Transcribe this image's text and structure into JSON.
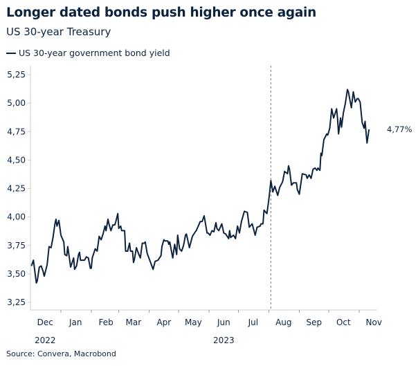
{
  "chart_data": {
    "type": "line",
    "title": "Longer dated bonds push higher once again",
    "subtitle": "US 30-year Treasury",
    "source": "Source: Convera, Macrobond",
    "ylim": [
      3.2,
      5.35
    ],
    "yticks": [
      "5,25",
      "5,00",
      "4,75",
      "4,50",
      "4,25",
      "4,00",
      "3,75",
      "3,50",
      "3,25"
    ],
    "ytick_values": [
      5.25,
      5.0,
      4.75,
      4.5,
      4.25,
      4.0,
      3.75,
      3.5,
      3.25
    ],
    "xlim": [
      "2022-12-01",
      "2023-11-20"
    ],
    "xticks": [
      {
        "label": "Dec",
        "month": "2022-12"
      },
      {
        "label": "Jan",
        "month": "2023-01"
      },
      {
        "label": "Feb",
        "month": "2023-02"
      },
      {
        "label": "Mar",
        "month": "2023-03"
      },
      {
        "label": "Apr",
        "month": "2023-04"
      },
      {
        "label": "May",
        "month": "2023-05"
      },
      {
        "label": "Jun",
        "month": "2023-06"
      },
      {
        "label": "Jul",
        "month": "2023-07"
      },
      {
        "label": "Aug",
        "month": "2023-08"
      },
      {
        "label": "Sep",
        "month": "2023-09"
      },
      {
        "label": "Oct",
        "month": "2023-10"
      },
      {
        "label": "Nov",
        "month": "2023-11"
      }
    ],
    "year_labels": [
      {
        "label": "2022",
        "date": "2022-12-16"
      },
      {
        "label": "2023",
        "date": "2023-06-16"
      }
    ],
    "grid": false,
    "legend_placement": "top-left",
    "vertical_marker": "2023-08-03",
    "end_label": "4,77%",
    "line_color": "#0c2340",
    "series": [
      {
        "name": "US 30-year government bond yield",
        "points": [
          [
            "2022-12-02",
            3.57
          ],
          [
            "2022-12-04",
            3.62
          ],
          [
            "2022-12-07",
            3.42
          ],
          [
            "2022-12-08",
            3.44
          ],
          [
            "2022-12-10",
            3.56
          ],
          [
            "2022-12-12",
            3.57
          ],
          [
            "2022-12-14",
            3.52
          ],
          [
            "2022-12-15",
            3.48
          ],
          [
            "2022-12-18",
            3.58
          ],
          [
            "2022-12-20",
            3.74
          ],
          [
            "2022-12-22",
            3.73
          ],
          [
            "2022-12-24",
            3.82
          ],
          [
            "2022-12-26",
            3.94
          ],
          [
            "2022-12-27",
            3.98
          ],
          [
            "2022-12-28",
            3.92
          ],
          [
            "2022-12-30",
            3.97
          ],
          [
            "2023-01-01",
            3.84
          ],
          [
            "2023-01-04",
            3.78
          ],
          [
            "2023-01-05",
            3.67
          ],
          [
            "2023-01-07",
            3.66
          ],
          [
            "2023-01-08",
            3.74
          ],
          [
            "2023-01-11",
            3.56
          ],
          [
            "2023-01-14",
            3.64
          ],
          [
            "2023-01-15",
            3.54
          ],
          [
            "2023-01-17",
            3.57
          ],
          [
            "2023-01-19",
            3.67
          ],
          [
            "2023-01-20",
            3.69
          ],
          [
            "2023-01-21",
            3.62
          ],
          [
            "2023-01-25",
            3.62
          ],
          [
            "2023-01-27",
            3.65
          ],
          [
            "2023-01-29",
            3.64
          ],
          [
            "2023-01-31",
            3.55
          ],
          [
            "2023-02-01",
            3.55
          ],
          [
            "2023-02-02",
            3.64
          ],
          [
            "2023-02-05",
            3.72
          ],
          [
            "2023-02-07",
            3.7
          ],
          [
            "2023-02-09",
            3.83
          ],
          [
            "2023-02-11",
            3.8
          ],
          [
            "2023-02-13",
            3.85
          ],
          [
            "2023-02-15",
            3.92
          ],
          [
            "2023-02-16",
            3.88
          ],
          [
            "2023-02-18",
            3.98
          ],
          [
            "2023-02-19",
            3.94
          ],
          [
            "2023-02-21",
            3.88
          ],
          [
            "2023-02-23",
            3.93
          ],
          [
            "2023-02-25",
            3.93
          ],
          [
            "2023-02-26",
            3.96
          ],
          [
            "2023-02-28",
            4.03
          ],
          [
            "2023-03-01",
            3.9
          ],
          [
            "2023-03-03",
            3.92
          ],
          [
            "2023-03-04",
            3.88
          ],
          [
            "2023-03-07",
            3.88
          ],
          [
            "2023-03-08",
            3.7
          ],
          [
            "2023-03-10",
            3.7
          ],
          [
            "2023-03-12",
            3.77
          ],
          [
            "2023-03-13",
            3.7
          ],
          [
            "2023-03-15",
            3.7
          ],
          [
            "2023-03-16",
            3.6
          ],
          [
            "2023-03-17",
            3.63
          ],
          [
            "2023-03-19",
            3.73
          ],
          [
            "2023-03-21",
            3.68
          ],
          [
            "2023-03-23",
            3.64
          ],
          [
            "2023-03-25",
            3.77
          ],
          [
            "2023-03-27",
            3.77
          ],
          [
            "2023-03-28",
            3.78
          ],
          [
            "2023-03-30",
            3.68
          ],
          [
            "2023-04-02",
            3.61
          ],
          [
            "2023-04-05",
            3.54
          ],
          [
            "2023-04-07",
            3.61
          ],
          [
            "2023-04-10",
            3.62
          ],
          [
            "2023-04-13",
            3.66
          ],
          [
            "2023-04-14",
            3.74
          ],
          [
            "2023-04-16",
            3.8
          ],
          [
            "2023-04-17",
            3.79
          ],
          [
            "2023-04-20",
            3.79
          ],
          [
            "2023-04-21",
            3.76
          ],
          [
            "2023-04-22",
            3.78
          ],
          [
            "2023-04-25",
            3.64
          ],
          [
            "2023-04-26",
            3.7
          ],
          [
            "2023-04-27",
            3.76
          ],
          [
            "2023-04-29",
            3.67
          ],
          [
            "2023-04-30",
            3.84
          ],
          [
            "2023-05-02",
            3.72
          ],
          [
            "2023-05-04",
            3.7
          ],
          [
            "2023-05-06",
            3.75
          ],
          [
            "2023-05-08",
            3.84
          ],
          [
            "2023-05-09",
            3.85
          ],
          [
            "2023-05-12",
            3.73
          ],
          [
            "2023-05-15",
            3.83
          ],
          [
            "2023-05-18",
            3.87
          ],
          [
            "2023-05-19",
            3.88
          ],
          [
            "2023-05-21",
            3.92
          ],
          [
            "2023-05-23",
            3.96
          ],
          [
            "2023-05-25",
            3.96
          ],
          [
            "2023-05-27",
            4.01
          ],
          [
            "2023-05-30",
            3.86
          ],
          [
            "2023-05-31",
            3.86
          ],
          [
            "2023-06-02",
            3.84
          ],
          [
            "2023-06-04",
            3.88
          ],
          [
            "2023-06-06",
            3.87
          ],
          [
            "2023-06-08",
            3.95
          ],
          [
            "2023-06-09",
            3.9
          ],
          [
            "2023-06-11",
            3.88
          ],
          [
            "2023-06-14",
            3.94
          ],
          [
            "2023-06-16",
            3.86
          ],
          [
            "2023-06-18",
            3.85
          ],
          [
            "2023-06-21",
            3.81
          ],
          [
            "2023-06-22",
            3.88
          ],
          [
            "2023-06-23",
            3.82
          ],
          [
            "2023-06-26",
            3.84
          ],
          [
            "2023-06-28",
            3.81
          ],
          [
            "2023-06-30",
            3.92
          ],
          [
            "2023-07-02",
            3.86
          ],
          [
            "2023-07-04",
            3.96
          ],
          [
            "2023-07-07",
            4.05
          ],
          [
            "2023-07-10",
            4.04
          ],
          [
            "2023-07-12",
            3.91
          ],
          [
            "2023-07-15",
            3.94
          ],
          [
            "2023-07-18",
            3.84
          ],
          [
            "2023-07-20",
            3.91
          ],
          [
            "2023-07-23",
            3.92
          ],
          [
            "2023-07-24",
            3.94
          ],
          [
            "2023-07-26",
            3.94
          ],
          [
            "2023-07-27",
            4.06
          ],
          [
            "2023-07-30",
            4.03
          ],
          [
            "2023-08-01",
            4.16
          ],
          [
            "2023-08-03",
            4.32
          ],
          [
            "2023-08-05",
            4.22
          ],
          [
            "2023-08-07",
            4.27
          ],
          [
            "2023-08-10",
            4.19
          ],
          [
            "2023-08-12",
            4.26
          ],
          [
            "2023-08-15",
            4.31
          ],
          [
            "2023-08-17",
            4.4
          ],
          [
            "2023-08-20",
            4.38
          ],
          [
            "2023-08-21",
            4.45
          ],
          [
            "2023-08-22",
            4.42
          ],
          [
            "2023-08-24",
            4.28
          ],
          [
            "2023-08-26",
            4.3
          ],
          [
            "2023-08-29",
            4.3
          ],
          [
            "2023-08-30",
            4.24
          ],
          [
            "2023-09-01",
            4.2
          ],
          [
            "2023-09-04",
            4.38
          ],
          [
            "2023-09-08",
            4.37
          ],
          [
            "2023-09-09",
            4.34
          ],
          [
            "2023-09-11",
            4.37
          ],
          [
            "2023-09-13",
            4.34
          ],
          [
            "2023-09-15",
            4.42
          ],
          [
            "2023-09-17",
            4.43
          ],
          [
            "2023-09-19",
            4.41
          ],
          [
            "2023-09-20",
            4.43
          ],
          [
            "2023-09-22",
            4.41
          ],
          [
            "2023-09-23",
            4.56
          ],
          [
            "2023-09-24",
            4.54
          ],
          [
            "2023-09-26",
            4.68
          ],
          [
            "2023-09-29",
            4.73
          ],
          [
            "2023-09-30",
            4.72
          ],
          [
            "2023-10-02",
            4.78
          ],
          [
            "2023-10-04",
            4.95
          ],
          [
            "2023-10-06",
            4.87
          ],
          [
            "2023-10-09",
            4.95
          ],
          [
            "2023-10-10",
            4.86
          ],
          [
            "2023-10-11",
            4.73
          ],
          [
            "2023-10-13",
            4.87
          ],
          [
            "2023-10-14",
            4.79
          ],
          [
            "2023-10-16",
            4.92
          ],
          [
            "2023-10-18",
            5.0
          ],
          [
            "2023-10-20",
            5.12
          ],
          [
            "2023-10-21",
            5.1
          ],
          [
            "2023-10-24",
            4.96
          ],
          [
            "2023-10-26",
            5.1
          ],
          [
            "2023-10-28",
            5.01
          ],
          [
            "2023-10-30",
            5.04
          ],
          [
            "2023-10-31",
            5.04
          ],
          [
            "2023-11-02",
            5.01
          ],
          [
            "2023-11-04",
            4.83
          ],
          [
            "2023-11-06",
            4.78
          ],
          [
            "2023-11-07",
            4.84
          ],
          [
            "2023-11-09",
            4.65
          ],
          [
            "2023-11-11",
            4.77
          ]
        ]
      }
    ]
  }
}
